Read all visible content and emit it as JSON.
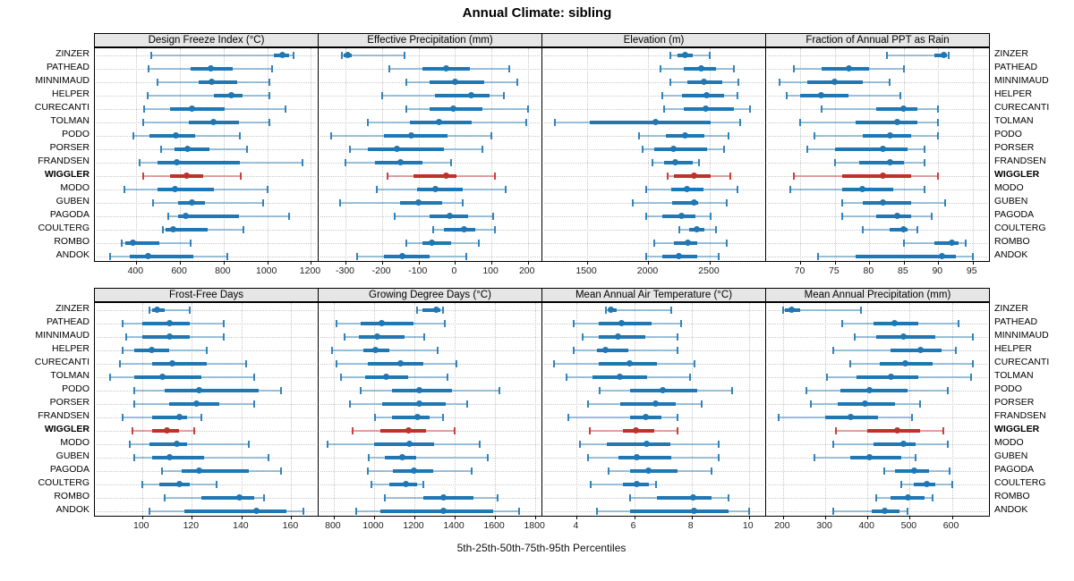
{
  "title": "Annual Climate: sibling",
  "footer": "5th-25th-50th-75th-95th Percentiles",
  "colors": {
    "series_blue": "#1F77B4",
    "highlight_red": "#C2302C",
    "panel_header_bg": "#E6E6E6",
    "grid": "#C8C8C8"
  },
  "chart_data": {
    "type": "dot-interval",
    "subtype": "5-25-50-75-95 percentile intervals per site, 8 trellis panels",
    "percentiles": [
      5,
      25,
      50,
      75,
      95
    ],
    "grid": true,
    "sites": [
      "ZINZER",
      "PATHEAD",
      "MINNIMAUD",
      "HELPER",
      "CURECANTI",
      "TOLMAN",
      "PODO",
      "PORSER",
      "FRANDSEN",
      "WIGGLER",
      "MODO",
      "GUBEN",
      "PAGODA",
      "COULTERG",
      "ROMBO",
      "ANDOK"
    ],
    "highlight_site": "WIGGLER",
    "panels": [
      {
        "title": "Design Freeze Index (°C)",
        "row": "top",
        "ticks": [
          400,
          600,
          800,
          1000,
          1200
        ],
        "domain": [
          210,
          1235
        ],
        "values": {
          "ZINZER": [
            470,
            1030,
            1070,
            1100,
            1120
          ],
          "PATHEAD": [
            455,
            650,
            740,
            840,
            1020
          ],
          "MINNIMAUD": [
            495,
            685,
            745,
            860,
            1010
          ],
          "HELPER": [
            450,
            755,
            835,
            885,
            1010
          ],
          "CURECANTI": [
            435,
            555,
            655,
            805,
            1085
          ],
          "TOLMAN": [
            430,
            640,
            755,
            870,
            1010
          ],
          "PODO": [
            385,
            460,
            580,
            670,
            875
          ],
          "PORSER": [
            515,
            575,
            635,
            735,
            905
          ],
          "FRANDSEN": [
            415,
            495,
            585,
            875,
            1160
          ],
          "WIGGLER": [
            430,
            555,
            630,
            705,
            880
          ],
          "MODO": [
            345,
            495,
            575,
            755,
            1000
          ],
          "GUBEN": [
            475,
            590,
            655,
            715,
            980
          ],
          "PAGODA": [
            545,
            590,
            625,
            870,
            1100
          ],
          "COULTERG": [
            520,
            535,
            570,
            725,
            890
          ],
          "ROMBO": [
            335,
            350,
            385,
            505,
            650
          ],
          "ANDOK": [
            280,
            370,
            455,
            660,
            815
          ]
        }
      },
      {
        "title": "Effective Precipitation (mm)",
        "row": "top",
        "ticks": [
          -300,
          -200,
          -100,
          0,
          100,
          200
        ],
        "domain": [
          -375,
          240
        ],
        "values": {
          "ZINZER": [
            -310,
            -305,
            -295,
            -285,
            -140
          ],
          "PATHEAD": [
            -180,
            -90,
            -25,
            40,
            150
          ],
          "MINNIMAUD": [
            -135,
            -70,
            0,
            80,
            170
          ],
          "HELPER": [
            -200,
            -55,
            45,
            95,
            135
          ],
          "CURECANTI": [
            -135,
            -70,
            -5,
            75,
            200
          ],
          "TOLMAN": [
            -240,
            -125,
            -45,
            45,
            195
          ],
          "PODO": [
            -340,
            -195,
            -120,
            -20,
            100
          ],
          "PORSER": [
            -290,
            -240,
            -160,
            -30,
            75
          ],
          "FRANDSEN": [
            -300,
            -220,
            -150,
            -90,
            -10
          ],
          "WIGGLER": [
            -185,
            -115,
            -25,
            5,
            110
          ],
          "MODO": [
            -215,
            -105,
            -55,
            20,
            140
          ],
          "GUBEN": [
            -315,
            -150,
            -100,
            -35,
            20
          ],
          "PAGODA": [
            -165,
            -70,
            -15,
            35,
            105
          ],
          "COULTERG": [
            -60,
            -30,
            25,
            55,
            110
          ],
          "ROMBO": [
            -135,
            -90,
            -65,
            -10,
            65
          ],
          "ANDOK": [
            -270,
            -195,
            -145,
            -70,
            30
          ]
        }
      },
      {
        "title": "Elevation (m)",
        "row": "top",
        "ticks": [
          1500,
          2000,
          2500
        ],
        "domain": [
          1135,
          2960
        ],
        "values": {
          "ZINZER": [
            2180,
            2240,
            2300,
            2360,
            2500
          ],
          "PATHEAD": [
            2100,
            2285,
            2430,
            2550,
            2695
          ],
          "MINNIMAUD": [
            2180,
            2320,
            2450,
            2600,
            2735
          ],
          "HELPER": [
            2110,
            2275,
            2475,
            2615,
            2730
          ],
          "CURECANTI": [
            2130,
            2290,
            2465,
            2695,
            2830
          ],
          "TOLMAN": [
            1235,
            1525,
            2060,
            2510,
            2745
          ],
          "PODO": [
            1920,
            2140,
            2300,
            2455,
            2655
          ],
          "PORSER": [
            1955,
            2050,
            2205,
            2475,
            2615
          ],
          "FRANDSEN": [
            2035,
            2125,
            2220,
            2365,
            2410
          ],
          "WIGGLER": [
            2160,
            2210,
            2370,
            2505,
            2665
          ],
          "MODO": [
            1985,
            2185,
            2315,
            2450,
            2730
          ],
          "GUBEN": [
            1870,
            2195,
            2370,
            2405,
            2640
          ],
          "PAGODA": [
            1985,
            2110,
            2270,
            2380,
            2510
          ],
          "COULTERG": [
            2255,
            2330,
            2395,
            2455,
            2550
          ],
          "ROMBO": [
            2045,
            2205,
            2320,
            2400,
            2640
          ],
          "ANDOK": [
            1985,
            2110,
            2250,
            2400,
            2575
          ]
        }
      },
      {
        "title": "Fraction of Annual PPT as Rain",
        "row": "top",
        "ticks": [
          70,
          75,
          80,
          85,
          90,
          95
        ],
        "domain": [
          65,
          97.5
        ],
        "values": {
          "ZINZER": [
            82.5,
            89.5,
            90.8,
            91.2,
            91.5
          ],
          "PATHEAD": [
            69,
            73,
            77,
            80,
            85
          ],
          "MINNIMAUD": [
            67,
            71,
            75,
            79,
            83
          ],
          "HELPER": [
            68,
            70,
            73,
            77,
            84.5
          ],
          "CURECANTI": [
            73,
            81,
            85,
            87,
            90
          ],
          "TOLMAN": [
            70,
            78,
            84,
            87,
            90
          ],
          "PODO": [
            72,
            79,
            83,
            86,
            90
          ],
          "PORSER": [
            71,
            75,
            82,
            85.5,
            88
          ],
          "FRANDSEN": [
            75,
            78.5,
            83,
            85,
            88
          ],
          "WIGGLER": [
            69,
            76,
            82,
            86,
            90
          ],
          "MODO": [
            68.5,
            76,
            79,
            83.5,
            88
          ],
          "GUBEN": [
            76,
            79,
            82,
            86,
            91
          ],
          "PAGODA": [
            76,
            81,
            84,
            86,
            89
          ],
          "COULTERG": [
            79,
            83,
            85,
            85.5,
            87
          ],
          "ROMBO": [
            85,
            89.5,
            92,
            93,
            94
          ],
          "ANDOK": [
            72.5,
            78,
            90.5,
            92.5,
            95
          ]
        }
      },
      {
        "title": "Frost-Free Days",
        "row": "bottom",
        "ticks": [
          100,
          120,
          140,
          160
        ],
        "domain": [
          81,
          171
        ],
        "values": {
          "ZINZER": [
            103,
            104,
            106,
            109,
            119
          ],
          "PATHEAD": [
            92,
            100,
            111,
            119,
            133
          ],
          "MINNIMAUD": [
            93.5,
            100,
            111,
            119,
            133
          ],
          "HELPER": [
            92,
            97,
            104,
            111,
            126
          ],
          "CURECANTI": [
            91,
            104,
            112,
            126,
            142
          ],
          "TOLMAN": [
            87,
            97,
            108,
            124,
            145
          ],
          "PODO": [
            97,
            109,
            123,
            147,
            156
          ],
          "PORSER": [
            97,
            111,
            122,
            131,
            145
          ],
          "FRANDSEN": [
            92,
            104,
            115,
            118,
            124
          ],
          "WIGGLER": [
            96,
            104,
            110,
            115,
            121
          ],
          "MODO": [
            95,
            103,
            114,
            118,
            143
          ],
          "GUBEN": [
            97,
            104,
            111,
            125,
            151
          ],
          "PAGODA": [
            108,
            116,
            123,
            143,
            156
          ],
          "COULTERG": [
            100,
            107,
            115,
            119,
            130
          ],
          "ROMBO": [
            109,
            124,
            139,
            145,
            149
          ],
          "ANDOK": [
            103,
            117,
            146,
            158,
            165
          ]
        }
      },
      {
        "title": "Growing Degree Days (°C)",
        "row": "bottom",
        "ticks": [
          800,
          1000,
          1200,
          1400,
          1600,
          1800
        ],
        "domain": [
          725,
          1835
        ],
        "values": {
          "ZINZER": [
            1215,
            1240,
            1310,
            1330,
            1340
          ],
          "PATHEAD": [
            815,
            935,
            1040,
            1195,
            1350
          ],
          "MINNIMAUD": [
            855,
            925,
            1015,
            1150,
            1250
          ],
          "HELPER": [
            790,
            945,
            1005,
            1075,
            1315
          ],
          "CURECANTI": [
            815,
            970,
            1130,
            1245,
            1410
          ],
          "TOLMAN": [
            835,
            955,
            1060,
            1170,
            1365
          ],
          "PODO": [
            935,
            1090,
            1225,
            1385,
            1620
          ],
          "PORSER": [
            880,
            1040,
            1225,
            1355,
            1460
          ],
          "FRANDSEN": [
            1005,
            1090,
            1215,
            1275,
            1340
          ],
          "WIGGLER": [
            895,
            1030,
            1170,
            1260,
            1400
          ],
          "MODO": [
            770,
            1000,
            1175,
            1300,
            1525
          ],
          "GUBEN": [
            975,
            1055,
            1140,
            1210,
            1565
          ],
          "PAGODA": [
            970,
            1095,
            1200,
            1295,
            1485
          ],
          "COULTERG": [
            985,
            1075,
            1160,
            1215,
            1245
          ],
          "ROMBO": [
            1055,
            1245,
            1345,
            1495,
            1615
          ],
          "ANDOK": [
            910,
            1030,
            1345,
            1590,
            1720
          ]
        }
      },
      {
        "title": "Mean Annual Air Temperature (°C)",
        "row": "bottom",
        "ticks": [
          4,
          6,
          8,
          10
        ],
        "domain": [
          2.8,
          10.6
        ],
        "values": {
          "ZINZER": [
            5.0,
            5.1,
            5.2,
            5.4,
            7.3
          ],
          "PATHEAD": [
            3.9,
            4.75,
            5.55,
            6.6,
            7.65
          ],
          "MINNIMAUD": [
            4.2,
            4.75,
            5.45,
            6.4,
            7.5
          ],
          "HELPER": [
            3.9,
            4.7,
            5.0,
            5.8,
            7.5
          ],
          "CURECANTI": [
            3.2,
            4.75,
            5.85,
            6.8,
            8.1
          ],
          "TOLMAN": [
            3.65,
            4.55,
            5.5,
            6.45,
            7.95
          ],
          "PODO": [
            4.8,
            5.85,
            7.0,
            8.2,
            9.4
          ],
          "PORSER": [
            4.4,
            5.5,
            6.75,
            7.45,
            8.35
          ],
          "FRANDSEN": [
            3.7,
            5.85,
            6.4,
            6.95,
            7.5
          ],
          "WIGGLER": [
            4.45,
            5.6,
            6.05,
            6.7,
            7.5
          ],
          "MODO": [
            4.1,
            5.05,
            6.45,
            7.25,
            8.95
          ],
          "GUBEN": [
            4.4,
            5.45,
            6.1,
            7.3,
            8.95
          ],
          "PAGODA": [
            5.1,
            5.85,
            6.5,
            7.5,
            8.7
          ],
          "COULTERG": [
            4.5,
            5.6,
            6.1,
            6.5,
            6.75
          ],
          "ROMBO": [
            5.85,
            6.8,
            8.05,
            8.7,
            9.3
          ],
          "ANDOK": [
            4.7,
            5.85,
            8.1,
            9.3,
            10.0
          ]
        }
      },
      {
        "title": "Mean Annual Precipitation (mm)",
        "row": "bottom",
        "ticks": [
          200,
          300,
          400,
          500,
          600
        ],
        "domain": [
          160,
          690
        ],
        "values": {
          "ZINZER": [
            200,
            205,
            220,
            240,
            385
          ],
          "PATHEAD": [
            340,
            415,
            465,
            520,
            615
          ],
          "MINNIMAUD": [
            370,
            420,
            485,
            560,
            650
          ],
          "HELPER": [
            320,
            455,
            525,
            575,
            610
          ],
          "CURECANTI": [
            360,
            430,
            490,
            555,
            650
          ],
          "TOLMAN": [
            305,
            375,
            455,
            520,
            645
          ],
          "PODO": [
            255,
            335,
            405,
            495,
            590
          ],
          "PORSER": [
            265,
            330,
            395,
            465,
            525
          ],
          "FRANDSEN": [
            190,
            300,
            360,
            425,
            505
          ],
          "WIGGLER": [
            325,
            400,
            470,
            525,
            580
          ],
          "MODO": [
            320,
            415,
            485,
            515,
            590
          ],
          "GUBEN": [
            275,
            360,
            405,
            480,
            515
          ],
          "PAGODA": [
            440,
            465,
            510,
            545,
            595
          ],
          "COULTERG": [
            480,
            510,
            540,
            560,
            600
          ],
          "ROMBO": [
            420,
            455,
            495,
            535,
            555
          ],
          "ANDOK": [
            320,
            410,
            440,
            475,
            495
          ]
        }
      }
    ]
  }
}
